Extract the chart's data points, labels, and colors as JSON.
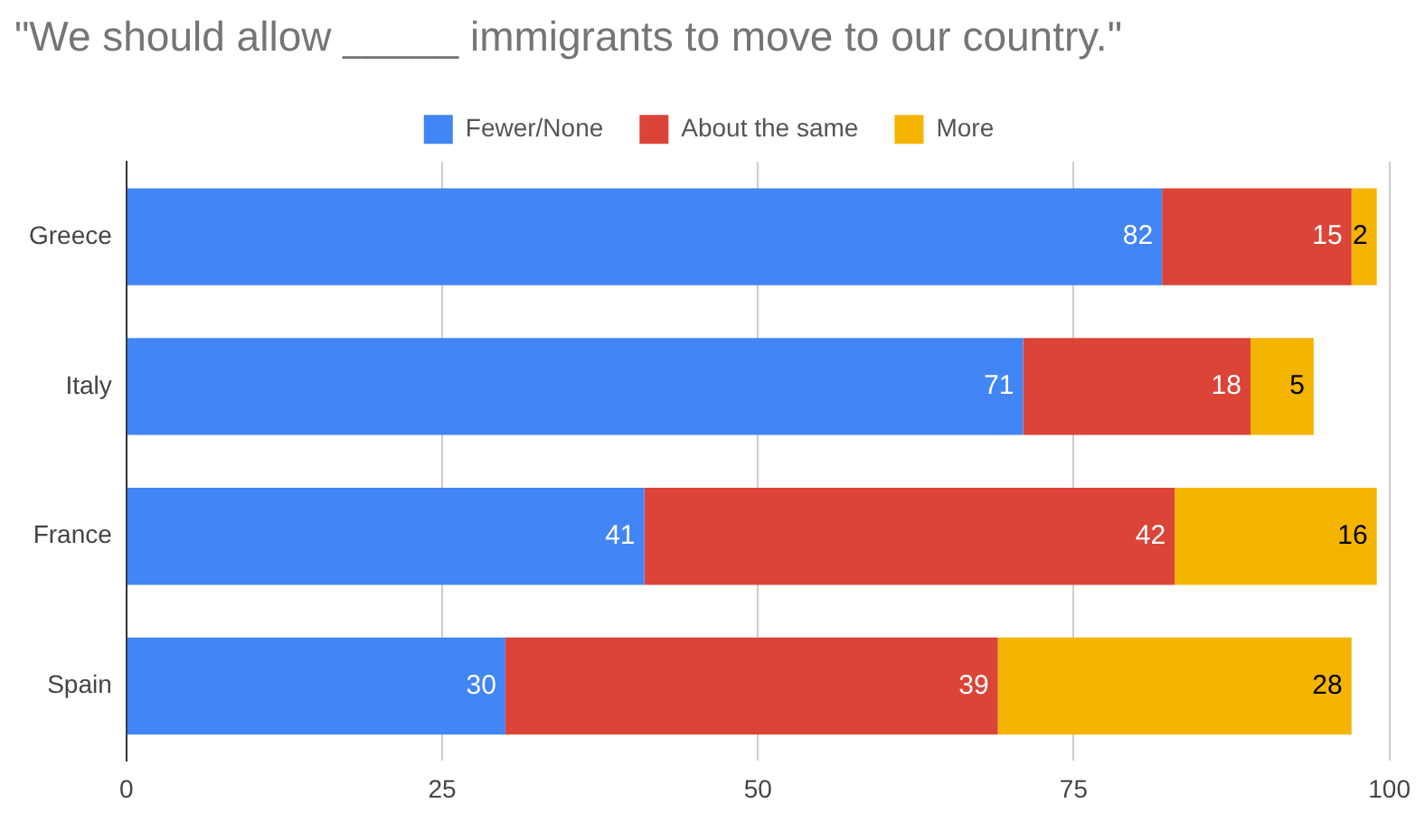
{
  "chart_data": {
    "type": "bar",
    "orientation": "horizontal",
    "stacked": true,
    "title": "\"We should allow _____ immigrants to move to our country.\"",
    "categories": [
      "Greece",
      "Italy",
      "France",
      "Spain"
    ],
    "series": [
      {
        "name": "Fewer/None",
        "color": "#4285f4",
        "values": [
          82,
          71,
          41,
          30
        ]
      },
      {
        "name": "About the same",
        "color": "#db4437",
        "values": [
          15,
          18,
          42,
          39
        ]
      },
      {
        "name": "More",
        "color": "#f4b400",
        "values": [
          2,
          5,
          16,
          28
        ]
      }
    ],
    "xlim": [
      0,
      100
    ],
    "xticks": [
      0,
      25,
      50,
      75,
      100
    ],
    "grid": "x",
    "legend": "top",
    "data_labels": true
  }
}
